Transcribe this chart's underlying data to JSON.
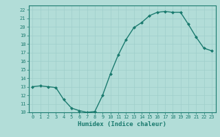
{
  "x": [
    0,
    1,
    2,
    3,
    4,
    5,
    6,
    7,
    8,
    9,
    10,
    11,
    12,
    13,
    14,
    15,
    16,
    17,
    18,
    19,
    20,
    21,
    22,
    23
  ],
  "y": [
    13.0,
    13.1,
    13.0,
    12.9,
    11.5,
    10.5,
    10.2,
    10.0,
    10.1,
    12.0,
    14.5,
    16.7,
    18.5,
    19.9,
    20.5,
    21.3,
    21.7,
    21.8,
    21.7,
    21.7,
    20.3,
    18.8,
    17.5,
    17.2
  ],
  "line_color": "#1a7a6e",
  "marker": "D",
  "marker_size": 2,
  "bg_color": "#b2ddd8",
  "grid_color": "#9ececa",
  "xlabel": "Humidex (Indice chaleur)",
  "xlim": [
    -0.5,
    23.5
  ],
  "ylim": [
    10,
    22.5
  ],
  "yticks": [
    10,
    11,
    12,
    13,
    14,
    15,
    16,
    17,
    18,
    19,
    20,
    21,
    22
  ],
  "xticks": [
    0,
    1,
    2,
    3,
    4,
    5,
    6,
    7,
    8,
    9,
    10,
    11,
    12,
    13,
    14,
    15,
    16,
    17,
    18,
    19,
    20,
    21,
    22,
    23
  ],
  "tick_fontsize": 5.0,
  "label_fontsize": 6.5,
  "tick_color": "#1a7a6e",
  "label_color": "#1a7a6e",
  "spine_color": "#1a7a6e",
  "line_width": 1.0
}
